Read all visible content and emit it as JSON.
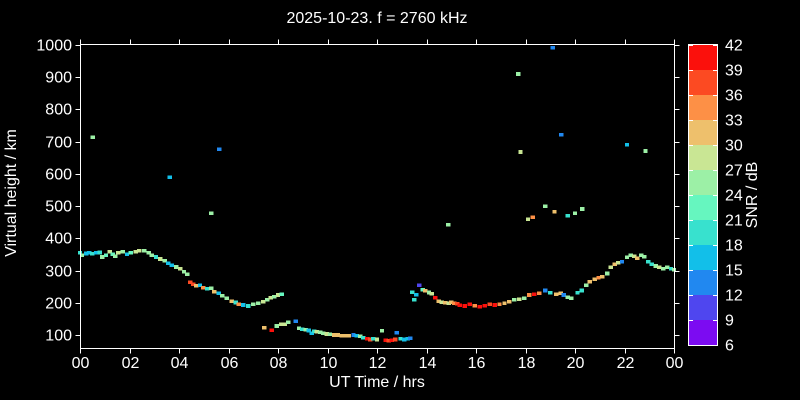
{
  "chart_data": {
    "type": "scatter",
    "title": "2025-10-23. f = 2760 kHz",
    "xlabel": "UT Time / hrs",
    "ylabel": "Virtual height / km",
    "grid": false,
    "xlim_hours": [
      0,
      24
    ],
    "ylim_km": [
      60,
      1003
    ],
    "x_tick_hours": [
      0,
      2,
      4,
      6,
      8,
      10,
      12,
      14,
      16,
      18,
      20,
      22,
      24
    ],
    "x_tick_labels": [
      "00",
      "02",
      "04",
      "06",
      "08",
      "10",
      "12",
      "14",
      "16",
      "18",
      "20",
      "22",
      "00"
    ],
    "y_tick_km": [
      100,
      200,
      300,
      400,
      500,
      600,
      700,
      800,
      900,
      1000
    ],
    "y_tick_labels": [
      "100",
      "200",
      "300",
      "400",
      "500",
      "600",
      "700",
      "800",
      "900",
      "1000"
    ],
    "points_format": "[ut_hours, virtual_height_km, snr_db]",
    "points": [
      [
        0.0,
        355,
        19
      ],
      [
        0.08,
        348,
        25
      ],
      [
        0.25,
        353,
        16
      ],
      [
        0.38,
        355,
        16
      ],
      [
        0.5,
        352,
        19
      ],
      [
        0.52,
        714,
        25
      ],
      [
        0.65,
        355,
        16
      ],
      [
        0.8,
        356,
        19
      ],
      [
        0.9,
        342,
        25
      ],
      [
        1.05,
        348,
        22
      ],
      [
        1.2,
        358,
        28
      ],
      [
        1.32,
        351,
        22
      ],
      [
        1.42,
        345,
        25
      ],
      [
        1.55,
        355,
        28
      ],
      [
        1.72,
        358,
        25
      ],
      [
        1.9,
        351,
        16
      ],
      [
        2.05,
        355,
        22
      ],
      [
        2.25,
        358,
        28
      ],
      [
        2.4,
        361,
        28
      ],
      [
        2.6,
        361,
        25
      ],
      [
        2.77,
        355,
        25
      ],
      [
        2.9,
        348,
        25
      ],
      [
        3.07,
        342,
        19
      ],
      [
        3.24,
        336,
        28
      ],
      [
        3.42,
        330,
        25
      ],
      [
        3.56,
        323,
        16
      ],
      [
        3.63,
        590,
        16
      ],
      [
        3.7,
        317,
        16
      ],
      [
        3.89,
        311,
        25
      ],
      [
        4.05,
        305,
        28
      ],
      [
        4.2,
        296,
        25
      ],
      [
        4.33,
        288,
        25
      ],
      [
        4.45,
        264,
        37
      ],
      [
        4.58,
        257,
        37
      ],
      [
        4.7,
        253,
        31
      ],
      [
        4.85,
        255,
        16
      ],
      [
        4.98,
        247,
        34
      ],
      [
        5.14,
        243,
        19
      ],
      [
        5.3,
        245,
        25
      ],
      [
        5.3,
        478,
        25
      ],
      [
        5.43,
        234,
        31
      ],
      [
        5.6,
        229,
        16
      ],
      [
        5.63,
        677,
        13
      ],
      [
        5.75,
        222,
        25
      ],
      [
        5.93,
        214,
        25
      ],
      [
        6.13,
        205,
        31
      ],
      [
        6.29,
        201,
        19
      ],
      [
        6.42,
        195,
        34
      ],
      [
        6.6,
        193,
        16
      ],
      [
        6.8,
        190,
        19
      ],
      [
        7.0,
        195,
        25
      ],
      [
        7.2,
        198,
        25
      ],
      [
        7.4,
        203,
        28
      ],
      [
        7.45,
        122,
        31
      ],
      [
        7.57,
        209,
        25
      ],
      [
        7.7,
        216,
        28
      ],
      [
        7.75,
        115,
        40
      ],
      [
        7.85,
        219,
        25
      ],
      [
        7.95,
        128,
        25
      ],
      [
        8.0,
        224,
        28
      ],
      [
        8.12,
        133,
        28
      ],
      [
        8.15,
        227,
        22
      ],
      [
        8.28,
        133,
        28
      ],
      [
        8.42,
        139,
        25
      ],
      [
        8.72,
        143,
        13
      ],
      [
        8.85,
        121,
        25
      ],
      [
        8.98,
        118,
        19
      ],
      [
        9.12,
        116,
        25
      ],
      [
        9.25,
        114,
        16
      ],
      [
        9.36,
        105,
        16
      ],
      [
        9.47,
        112,
        19
      ],
      [
        9.56,
        110,
        28
      ],
      [
        9.7,
        108,
        25
      ],
      [
        9.83,
        105,
        25
      ],
      [
        9.97,
        103,
        28
      ],
      [
        10.1,
        102,
        25
      ],
      [
        10.27,
        100,
        31
      ],
      [
        10.41,
        100,
        31
      ],
      [
        10.57,
        98,
        31
      ],
      [
        10.71,
        98,
        31
      ],
      [
        10.87,
        98,
        31
      ],
      [
        11.05,
        100,
        13
      ],
      [
        11.18,
        98,
        16
      ],
      [
        11.32,
        96,
        25
      ],
      [
        11.45,
        92,
        19
      ],
      [
        11.6,
        88,
        40
      ],
      [
        11.72,
        86,
        37
      ],
      [
        11.85,
        88,
        19
      ],
      [
        12.0,
        86,
        28
      ],
      [
        12.2,
        113,
        25
      ],
      [
        12.35,
        84,
        40
      ],
      [
        12.48,
        82,
        37
      ],
      [
        12.6,
        84,
        40
      ],
      [
        12.73,
        86,
        37
      ],
      [
        12.8,
        107,
        13
      ],
      [
        12.95,
        88,
        19
      ],
      [
        13.1,
        86,
        16
      ],
      [
        13.25,
        88,
        16
      ],
      [
        13.35,
        90,
        13
      ],
      [
        13.42,
        233,
        19
      ],
      [
        13.5,
        210,
        19
      ],
      [
        13.58,
        225,
        16
      ],
      [
        13.7,
        255,
        10
      ],
      [
        13.85,
        240,
        22
      ],
      [
        13.95,
        237,
        31
      ],
      [
        14.1,
        232,
        25
      ],
      [
        14.22,
        228,
        28
      ],
      [
        14.35,
        215,
        40
      ],
      [
        14.5,
        205,
        31
      ],
      [
        14.62,
        202,
        28
      ],
      [
        14.75,
        200,
        31
      ],
      [
        14.88,
        442,
        25
      ],
      [
        14.9,
        198,
        28
      ],
      [
        15.0,
        202,
        31
      ],
      [
        15.12,
        199,
        34
      ],
      [
        15.25,
        197,
        37
      ],
      [
        15.35,
        192,
        40
      ],
      [
        15.55,
        190,
        40
      ],
      [
        15.75,
        195,
        40
      ],
      [
        15.95,
        191,
        34
      ],
      [
        16.15,
        188,
        40
      ],
      [
        16.35,
        191,
        40
      ],
      [
        16.55,
        195,
        37
      ],
      [
        16.75,
        193,
        40
      ],
      [
        16.95,
        195,
        34
      ],
      [
        17.15,
        198,
        31
      ],
      [
        17.35,
        203,
        31
      ],
      [
        17.55,
        209,
        25
      ],
      [
        17.7,
        910,
        25
      ],
      [
        17.75,
        211,
        28
      ],
      [
        17.8,
        668,
        28
      ],
      [
        17.95,
        214,
        25
      ],
      [
        18.1,
        459,
        28
      ],
      [
        18.15,
        224,
        34
      ],
      [
        18.3,
        466,
        34
      ],
      [
        18.35,
        227,
        40
      ],
      [
        18.55,
        229,
        34
      ],
      [
        18.8,
        238,
        13
      ],
      [
        18.8,
        500,
        25
      ],
      [
        19.0,
        231,
        19
      ],
      [
        19.1,
        992,
        13
      ],
      [
        19.17,
        483,
        31
      ],
      [
        19.25,
        227,
        31
      ],
      [
        19.42,
        229,
        31
      ],
      [
        19.45,
        721,
        13
      ],
      [
        19.55,
        224,
        13
      ],
      [
        19.7,
        217,
        25
      ],
      [
        19.7,
        470,
        19
      ],
      [
        19.85,
        214,
        25
      ],
      [
        20.0,
        478,
        25
      ],
      [
        20.1,
        231,
        19
      ],
      [
        20.27,
        238,
        19
      ],
      [
        20.3,
        491,
        25
      ],
      [
        20.45,
        255,
        25
      ],
      [
        20.6,
        265,
        31
      ],
      [
        20.8,
        273,
        31
      ],
      [
        20.95,
        278,
        34
      ],
      [
        21.1,
        281,
        31
      ],
      [
        21.3,
        291,
        25
      ],
      [
        21.45,
        310,
        28
      ],
      [
        21.6,
        319,
        31
      ],
      [
        21.75,
        324,
        28
      ],
      [
        21.9,
        327,
        13
      ],
      [
        22.1,
        341,
        25
      ],
      [
        22.1,
        690,
        16
      ],
      [
        22.25,
        348,
        25
      ],
      [
        22.4,
        345,
        28
      ],
      [
        22.52,
        338,
        31
      ],
      [
        22.67,
        348,
        25
      ],
      [
        22.8,
        343,
        25
      ],
      [
        22.85,
        671,
        25
      ],
      [
        22.96,
        327,
        19
      ],
      [
        23.1,
        320,
        19
      ],
      [
        23.26,
        314,
        25
      ],
      [
        23.41,
        310,
        28
      ],
      [
        23.57,
        306,
        25
      ],
      [
        23.73,
        310,
        25
      ],
      [
        23.88,
        306,
        19
      ],
      [
        24.0,
        303,
        25
      ]
    ]
  },
  "colorbar": {
    "label": "SNR / dB",
    "range_db": [
      6,
      42
    ],
    "tick_values": [
      6,
      9,
      12,
      15,
      18,
      21,
      24,
      27,
      30,
      33,
      36,
      39,
      42
    ],
    "tick_labels": [
      "6",
      "9",
      "12",
      "15",
      "18",
      "21",
      "24",
      "27",
      "30",
      "33",
      "36",
      "39",
      "42"
    ],
    "segment_colors_low_to_high": [
      "#7c0bf2",
      "#4f46ef",
      "#2188f0",
      "#12bfe9",
      "#38e1ce",
      "#66f6bf",
      "#9cf0a6",
      "#c9e694",
      "#eec06c",
      "#fd9046",
      "#fc4a22",
      "#fb100c"
    ]
  },
  "colors": {
    "background": "#000000",
    "axis": "#ffffff",
    "text": "#ffffff"
  }
}
